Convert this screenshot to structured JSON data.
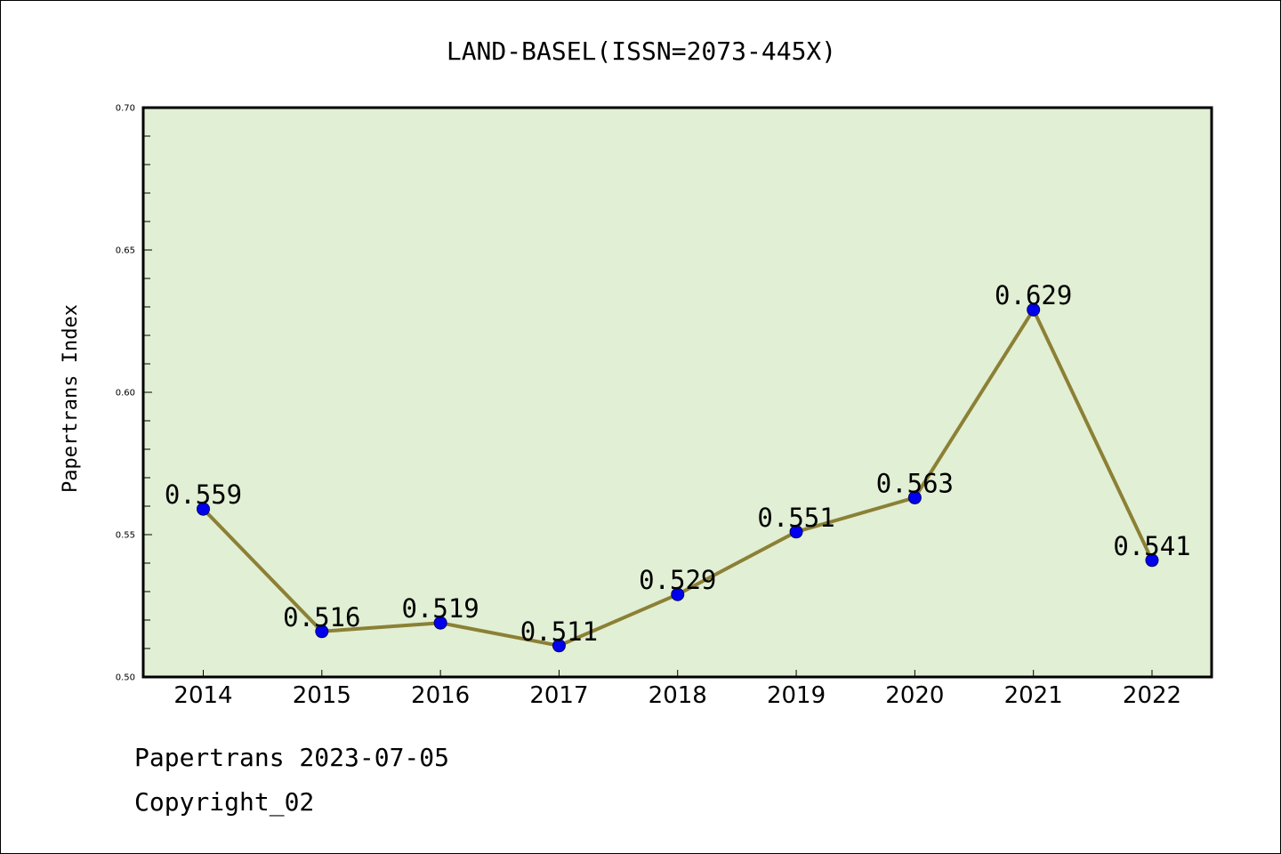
{
  "chart_data": {
    "type": "line",
    "title": "LAND-BASEL(ISSN=2073-445X)",
    "xlabel": "",
    "ylabel": "Papertrans Index",
    "categories": [
      "2014",
      "2015",
      "2016",
      "2017",
      "2018",
      "2019",
      "2020",
      "2021",
      "2022"
    ],
    "series": [
      {
        "values": [
          0.559,
          0.516,
          0.519,
          0.511,
          0.529,
          0.551,
          0.563,
          0.629,
          0.541
        ],
        "data_labels": [
          "0.559",
          "0.516",
          "0.519",
          "0.511",
          "0.529",
          "0.551",
          "0.563",
          "0.629",
          "0.541"
        ]
      }
    ],
    "ylim": [
      0.5,
      0.7
    ],
    "yticks": [
      "0.50",
      "0.55",
      "0.60",
      "0.65",
      "0.70"
    ],
    "grid": false,
    "legend": "none",
    "colors": {
      "line": "#8B8035",
      "marker_fill": "#0000EE",
      "marker_edge": "#000066",
      "plot_background": "#E1EFD4",
      "axes_frame": "#000000"
    }
  },
  "footer": {
    "line1": "Papertrans 2023-07-05",
    "line2": "Copyright_02"
  }
}
